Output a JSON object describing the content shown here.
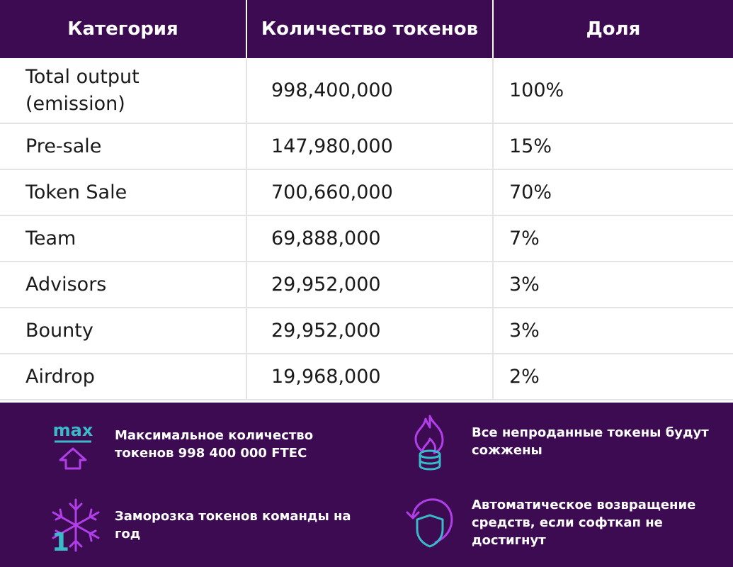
{
  "table": {
    "headers": [
      "Категория",
      "Количество токенов",
      "Доля"
    ],
    "rows": [
      {
        "category": "Total output (emission)",
        "tokens": "998,400,000",
        "share": "100%"
      },
      {
        "category": "Pre-sale",
        "tokens": "147,980,000",
        "share": "15%"
      },
      {
        "category": "Token Sale",
        "tokens": "700,660,000",
        "share": "70%"
      },
      {
        "category": "Team",
        "tokens": "69,888,000",
        "share": "7%"
      },
      {
        "category": "Advisors",
        "tokens": "29,952,000",
        "share": "3%"
      },
      {
        "category": "Bounty",
        "tokens": "29,952,000",
        "share": "3%"
      },
      {
        "category": "Airdrop",
        "tokens": "19,968,000",
        "share": "2%"
      }
    ]
  },
  "features": {
    "max_tokens": {
      "icon": "max-arrow-up-icon",
      "icon_label": "max",
      "text": "Максимальное количество токенов 998 400 000 FTEC"
    },
    "burn": {
      "icon": "burning-coins-icon",
      "text": "Все непроданные токены будут сожжены"
    },
    "freeze": {
      "icon": "snowflake-one-icon",
      "icon_label": "1",
      "text": "Заморозка токенов команды на год"
    },
    "refund": {
      "icon": "shield-refund-icon",
      "text": "Автоматическое возвращение средств, если софткап не достигнут"
    }
  },
  "colors": {
    "header_bg": "#3d0b52",
    "accent_cyan": "#3ab9c9",
    "accent_violet": "#b13ee8",
    "grid_line": "#e4e4e4"
  }
}
